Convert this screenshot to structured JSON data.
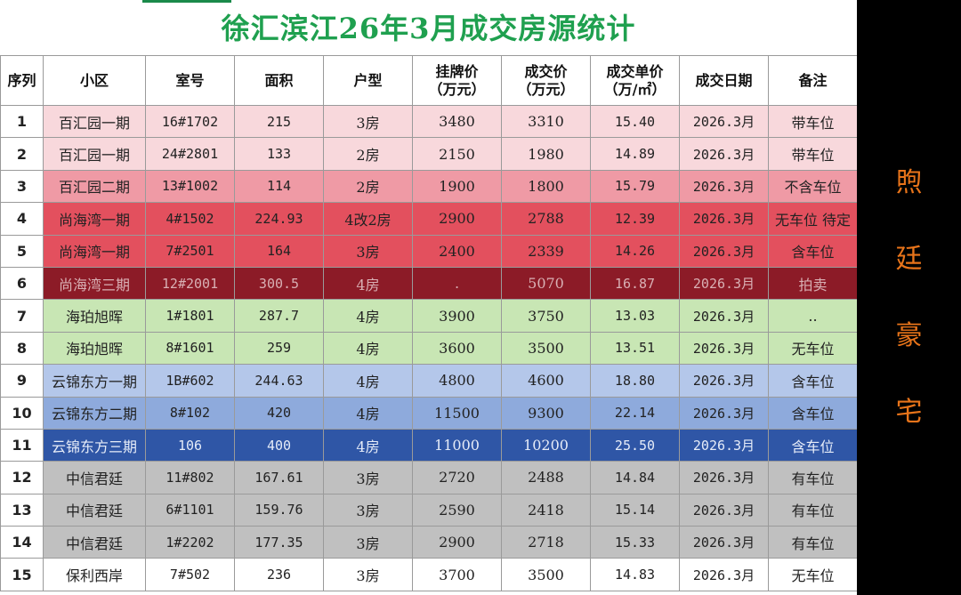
{
  "title": "徐汇滨江26年3月成交房源统计",
  "side_text": [
    "煦",
    "廷",
    "豪",
    "宅"
  ],
  "colors": {
    "title_green": "#1fa04f",
    "pink_light": "#f8d8dc",
    "pink": "#ef9aa5",
    "red": "#e3505e",
    "dark_red": "#8c1b27",
    "green_light": "#c8e6b4",
    "blue_light": "#b4c7ea",
    "blue": "#8eaadc",
    "blue_dark": "#2f56a6",
    "gray": "#c0c0c0",
    "white": "#ffffff"
  },
  "headers": [
    {
      "label": "序列"
    },
    {
      "label": "小区"
    },
    {
      "label": "室号"
    },
    {
      "label": "面积"
    },
    {
      "label": "户型"
    },
    {
      "label": "挂牌价",
      "sub": "（万元）"
    },
    {
      "label": "成交价",
      "sub": "（万元）"
    },
    {
      "label": "成交单价",
      "sub": "（万/㎡）"
    },
    {
      "label": "成交日期"
    },
    {
      "label": "备注"
    }
  ],
  "rows": [
    {
      "seq": "1",
      "community": "百汇园一期",
      "unit": "16#1702",
      "area": "215",
      "layout": "3房",
      "list_price": "3480",
      "deal_price": "3310",
      "unit_price": "15.40",
      "date": "2026.3月",
      "note": "带车位",
      "color": "pink_light"
    },
    {
      "seq": "2",
      "community": "百汇园一期",
      "unit": "24#2801",
      "area": "133",
      "layout": "2房",
      "list_price": "2150",
      "deal_price": "1980",
      "unit_price": "14.89",
      "date": "2026.3月",
      "note": "带车位",
      "color": "pink_light"
    },
    {
      "seq": "3",
      "community": "百汇园二期",
      "unit": "13#1002",
      "area": "114",
      "layout": "2房",
      "list_price": "1900",
      "deal_price": "1800",
      "unit_price": "15.79",
      "date": "2026.3月",
      "note": "不含车位",
      "color": "pink"
    },
    {
      "seq": "4",
      "community": "尚海湾一期",
      "unit": "4#1502",
      "area": "224.93",
      "layout": "4改2房",
      "list_price": "2900",
      "deal_price": "2788",
      "unit_price": "12.39",
      "date": "2026.3月",
      "note": "无车位 待定",
      "color": "red"
    },
    {
      "seq": "5",
      "community": "尚海湾一期",
      "unit": "7#2501",
      "area": "164",
      "layout": "3房",
      "list_price": "2400",
      "deal_price": "2339",
      "unit_price": "14.26",
      "date": "2026.3月",
      "note": "含车位",
      "color": "red"
    },
    {
      "seq": "6",
      "community": "尚海湾三期",
      "unit": "12#2001",
      "area": "300.5",
      "layout": "4房",
      "list_price": ".",
      "deal_price": "5070",
      "unit_price": "16.87",
      "date": "2026.3月",
      "note": "拍卖",
      "color": "dark_red"
    },
    {
      "seq": "7",
      "community": "海珀旭晖",
      "unit": "1#1801",
      "area": "287.7",
      "layout": "4房",
      "list_price": "3900",
      "deal_price": "3750",
      "unit_price": "13.03",
      "date": "2026.3月",
      "note": "..",
      "color": "green_light"
    },
    {
      "seq": "8",
      "community": "海珀旭晖",
      "unit": "8#1601",
      "area": "259",
      "layout": "4房",
      "list_price": "3600",
      "deal_price": "3500",
      "unit_price": "13.51",
      "date": "2026.3月",
      "note": "无车位",
      "color": "green_light"
    },
    {
      "seq": "9",
      "community": "云锦东方一期",
      "unit": "1B#602",
      "area": "244.63",
      "layout": "4房",
      "list_price": "4800",
      "deal_price": "4600",
      "unit_price": "18.80",
      "date": "2026.3月",
      "note": "含车位",
      "color": "blue_light"
    },
    {
      "seq": "10",
      "community": "云锦东方二期",
      "unit": "8#102",
      "area": "420",
      "layout": "4房",
      "list_price": "11500",
      "deal_price": "9300",
      "unit_price": "22.14",
      "date": "2026.3月",
      "note": "含车位",
      "color": "blue"
    },
    {
      "seq": "11",
      "community": "云锦东方三期",
      "unit": "106",
      "area": "400",
      "layout": "4房",
      "list_price": "11000",
      "deal_price": "10200",
      "unit_price": "25.50",
      "date": "2026.3月",
      "note": "含车位",
      "color": "blue_dark"
    },
    {
      "seq": "12",
      "community": "中信君廷",
      "unit": "11#802",
      "area": "167.61",
      "layout": "3房",
      "list_price": "2720",
      "deal_price": "2488",
      "unit_price": "14.84",
      "date": "2026.3月",
      "note": "有车位",
      "color": "gray"
    },
    {
      "seq": "13",
      "community": "中信君廷",
      "unit": "6#1101",
      "area": "159.76",
      "layout": "3房",
      "list_price": "2590",
      "deal_price": "2418",
      "unit_price": "15.14",
      "date": "2026.3月",
      "note": "有车位",
      "color": "gray"
    },
    {
      "seq": "14",
      "community": "中信君廷",
      "unit": "1#2202",
      "area": "177.35",
      "layout": "3房",
      "list_price": "2900",
      "deal_price": "2718",
      "unit_price": "15.33",
      "date": "2026.3月",
      "note": "有车位",
      "color": "gray"
    },
    {
      "seq": "15",
      "community": "保利西岸",
      "unit": "7#502",
      "area": "236",
      "layout": "3房",
      "list_price": "3700",
      "deal_price": "3500",
      "unit_price": "14.83",
      "date": "2026.3月",
      "note": "无车位",
      "color": "white"
    }
  ]
}
